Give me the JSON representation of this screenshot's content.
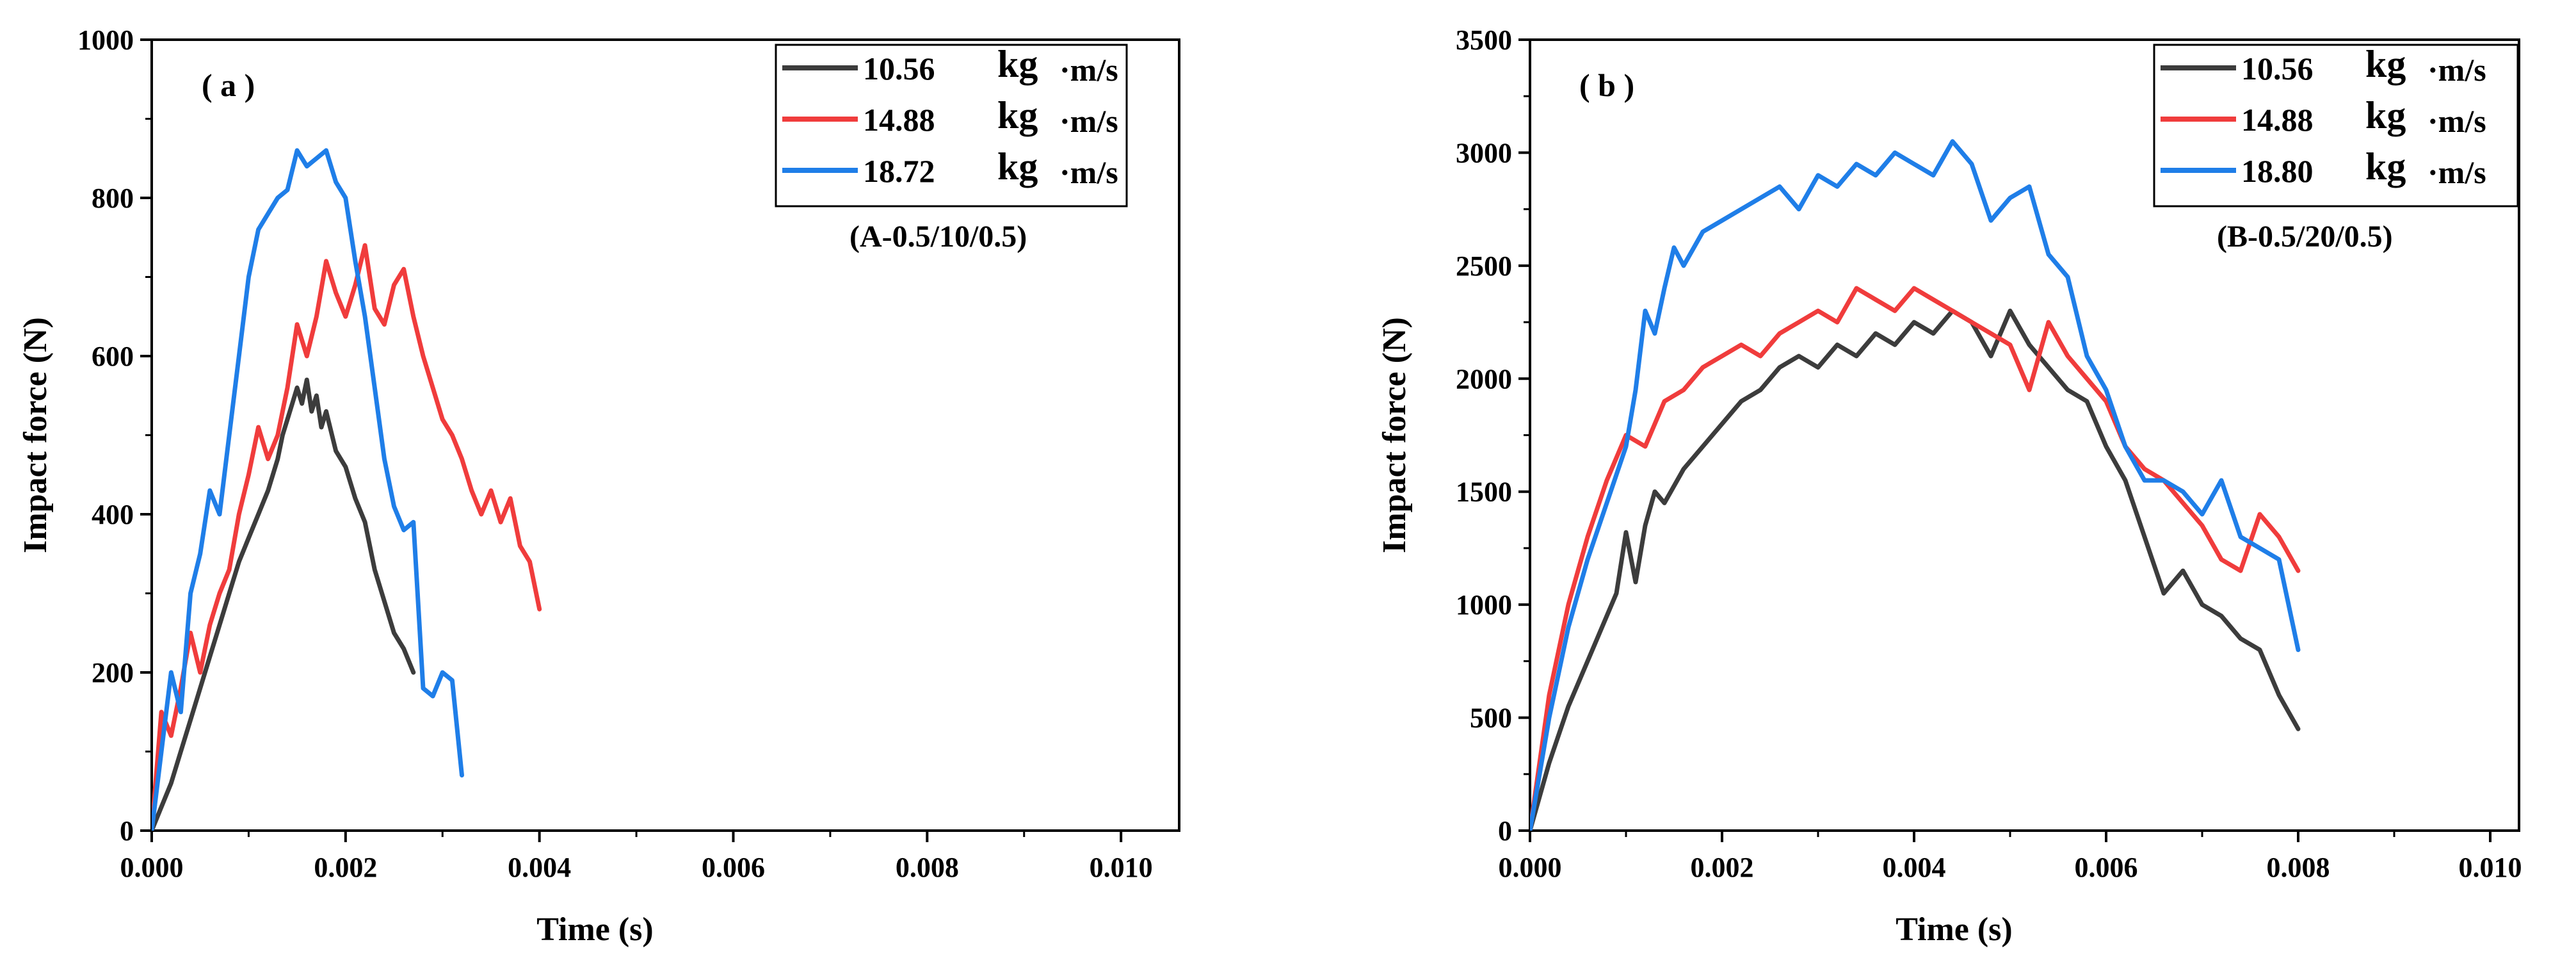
{
  "chart_data": [
    {
      "type": "line",
      "panel_label": "( a )",
      "annotation": "(A-0.5/10/0.5)",
      "xlabel": "Time (s)",
      "ylabel": "Impact force (N)",
      "xlim": [
        0,
        0.0106
      ],
      "ylim": [
        0,
        1000
      ],
      "xticks": [
        0,
        0.002,
        0.004,
        0.006,
        0.008,
        0.01
      ],
      "xtick_labels": [
        "0.000",
        "0.002",
        "0.004",
        "0.006",
        "0.008",
        "0.010"
      ],
      "yticks": [
        0,
        200,
        400,
        600,
        800,
        1000
      ],
      "ytick_labels": [
        "0",
        "200",
        "400",
        "600",
        "800",
        "1000"
      ],
      "grid": false,
      "legend_position": "top-right",
      "series": [
        {
          "name": "10.56 kg·m/s",
          "legend_value": "10.56",
          "legend_unit": "kg",
          "legend_suffix": "·m/s",
          "color": "#3c3c3c",
          "x": [
            0,
            0.0001,
            0.0002,
            0.0003,
            0.0004,
            0.0005,
            0.0006,
            0.0007,
            0.0008,
            0.0009,
            0.001,
            0.0011,
            0.0012,
            0.0013,
            0.00135,
            0.0014,
            0.00145,
            0.0015,
            0.00155,
            0.0016,
            0.00165,
            0.0017,
            0.00175,
            0.0018,
            0.0019,
            0.002,
            0.0021,
            0.0022,
            0.0023,
            0.0024,
            0.0025,
            0.0026,
            0.0027
          ],
          "y": [
            0,
            30,
            60,
            100,
            140,
            180,
            220,
            260,
            300,
            340,
            370,
            400,
            430,
            470,
            500,
            520,
            540,
            560,
            540,
            570,
            530,
            550,
            510,
            530,
            480,
            460,
            420,
            390,
            330,
            290,
            250,
            230,
            200
          ]
        },
        {
          "name": "14.88 kg·m/s",
          "legend_value": "14.88",
          "legend_unit": "kg",
          "legend_suffix": "·m/s",
          "color": "#f03c3c",
          "x": [
            0,
            0.0001,
            0.0002,
            0.0003,
            0.0004,
            0.0005,
            0.0006,
            0.0007,
            0.0008,
            0.0009,
            0.001,
            0.0011,
            0.0012,
            0.0013,
            0.0014,
            0.0015,
            0.0016,
            0.0017,
            0.0018,
            0.0019,
            0.002,
            0.0021,
            0.0022,
            0.0023,
            0.0024,
            0.0025,
            0.0026,
            0.0027,
            0.0028,
            0.0029,
            0.003,
            0.0031,
            0.0032,
            0.0033,
            0.0034,
            0.0035,
            0.0036,
            0.0037,
            0.0038,
            0.0039,
            0.004
          ],
          "y": [
            0,
            150,
            120,
            180,
            250,
            200,
            260,
            300,
            330,
            400,
            450,
            510,
            470,
            500,
            560,
            640,
            600,
            650,
            720,
            680,
            650,
            690,
            740,
            660,
            640,
            690,
            710,
            650,
            600,
            560,
            520,
            500,
            470,
            430,
            400,
            430,
            390,
            420,
            360,
            340,
            280
          ]
        },
        {
          "name": "18.72 kg·m/s",
          "legend_value": "18.72",
          "legend_unit": "kg",
          "legend_suffix": "·m/s",
          "color": "#1f7ee8",
          "x": [
            0,
            0.0001,
            0.0002,
            0.0003,
            0.0004,
            0.0005,
            0.0006,
            0.0007,
            0.0008,
            0.0009,
            0.001,
            0.0011,
            0.0012,
            0.0013,
            0.0014,
            0.0015,
            0.0016,
            0.0017,
            0.0018,
            0.0019,
            0.002,
            0.0021,
            0.0022,
            0.0023,
            0.0024,
            0.0025,
            0.0026,
            0.0027,
            0.0028,
            0.0029,
            0.003,
            0.0031,
            0.0032
          ],
          "y": [
            0,
            100,
            200,
            150,
            300,
            350,
            430,
            400,
            500,
            600,
            700,
            760,
            780,
            800,
            810,
            860,
            840,
            850,
            860,
            820,
            800,
            720,
            650,
            560,
            470,
            410,
            380,
            390,
            180,
            170,
            200,
            190,
            70
          ]
        }
      ]
    },
    {
      "type": "line",
      "panel_label": "( b )",
      "annotation": "(B-0.5/20/0.5)",
      "xlabel": "Time (s)",
      "ylabel": "Impact force (N)",
      "xlim": [
        0,
        0.0103
      ],
      "ylim": [
        0,
        3500
      ],
      "xticks": [
        0,
        0.002,
        0.004,
        0.006,
        0.008,
        0.01
      ],
      "xtick_labels": [
        "0.000",
        "0.002",
        "0.004",
        "0.006",
        "0.008",
        "0.010"
      ],
      "yticks": [
        0,
        500,
        1000,
        1500,
        2000,
        2500,
        3000,
        3500
      ],
      "ytick_labels": [
        "0",
        "500",
        "1000",
        "1500",
        "2000",
        "2500",
        "3000",
        "3500"
      ],
      "grid": false,
      "legend_position": "top-right",
      "series": [
        {
          "name": "10.56 kg·m/s",
          "legend_value": "10.56",
          "legend_unit": "kg",
          "legend_suffix": "·m/s",
          "color": "#3c3c3c",
          "x": [
            0,
            0.0002,
            0.0004,
            0.0006,
            0.0008,
            0.0009,
            0.001,
            0.0011,
            0.0012,
            0.0013,
            0.0014,
            0.0016,
            0.0018,
            0.002,
            0.0022,
            0.0024,
            0.0026,
            0.0028,
            0.003,
            0.0032,
            0.0034,
            0.0036,
            0.0038,
            0.004,
            0.0042,
            0.0044,
            0.0046,
            0.0048,
            0.005,
            0.0052,
            0.0054,
            0.0056,
            0.0058,
            0.006,
            0.0062,
            0.0064,
            0.0066,
            0.0068,
            0.007,
            0.0072,
            0.0074,
            0.0076,
            0.0078,
            0.008
          ],
          "y": [
            0,
            300,
            550,
            750,
            950,
            1050,
            1320,
            1100,
            1350,
            1500,
            1450,
            1600,
            1700,
            1800,
            1900,
            1950,
            2050,
            2100,
            2050,
            2150,
            2100,
            2200,
            2150,
            2250,
            2200,
            2300,
            2250,
            2100,
            2300,
            2150,
            2050,
            1950,
            1900,
            1700,
            1550,
            1300,
            1050,
            1150,
            1000,
            950,
            850,
            800,
            600,
            450
          ]
        },
        {
          "name": "14.88 kg·m/s",
          "legend_value": "14.88",
          "legend_unit": "kg",
          "legend_suffix": "·m/s",
          "color": "#f03c3c",
          "x": [
            0,
            0.0002,
            0.0004,
            0.0006,
            0.0008,
            0.001,
            0.0012,
            0.0014,
            0.0016,
            0.0018,
            0.002,
            0.0022,
            0.0024,
            0.0026,
            0.0028,
            0.003,
            0.0032,
            0.0034,
            0.0036,
            0.0038,
            0.004,
            0.0042,
            0.0044,
            0.0046,
            0.0048,
            0.005,
            0.0052,
            0.0054,
            0.0056,
            0.0058,
            0.006,
            0.0062,
            0.0064,
            0.0066,
            0.0068,
            0.007,
            0.0072,
            0.0074,
            0.0076,
            0.0078,
            0.008
          ],
          "y": [
            0,
            600,
            1000,
            1300,
            1550,
            1750,
            1700,
            1900,
            1950,
            2050,
            2100,
            2150,
            2100,
            2200,
            2250,
            2300,
            2250,
            2400,
            2350,
            2300,
            2400,
            2350,
            2300,
            2250,
            2200,
            2150,
            1950,
            2250,
            2100,
            2000,
            1900,
            1700,
            1600,
            1550,
            1450,
            1350,
            1200,
            1150,
            1400,
            1300,
            1150
          ]
        },
        {
          "name": "18.80 kg·m/s",
          "legend_value": "18.80",
          "legend_unit": "kg",
          "legend_suffix": "·m/s",
          "color": "#1f7ee8",
          "x": [
            0,
            0.0002,
            0.0004,
            0.0006,
            0.0008,
            0.001,
            0.0011,
            0.0012,
            0.0013,
            0.0014,
            0.0015,
            0.0016,
            0.0018,
            0.002,
            0.0022,
            0.0024,
            0.0026,
            0.0028,
            0.003,
            0.0032,
            0.0034,
            0.0036,
            0.0038,
            0.004,
            0.0042,
            0.0044,
            0.0046,
            0.0048,
            0.005,
            0.0052,
            0.0054,
            0.0056,
            0.0058,
            0.006,
            0.0062,
            0.0064,
            0.0066,
            0.0068,
            0.007,
            0.0072,
            0.0074,
            0.0076,
            0.0078,
            0.008
          ],
          "y": [
            0,
            500,
            900,
            1200,
            1450,
            1700,
            1950,
            2300,
            2200,
            2400,
            2580,
            2500,
            2650,
            2700,
            2750,
            2800,
            2850,
            2750,
            2900,
            2850,
            2950,
            2900,
            3000,
            2950,
            2900,
            3050,
            2950,
            2700,
            2800,
            2850,
            2550,
            2450,
            2100,
            1950,
            1700,
            1550,
            1550,
            1500,
            1400,
            1550,
            1300,
            1250,
            1200,
            800
          ]
        }
      ]
    }
  ]
}
